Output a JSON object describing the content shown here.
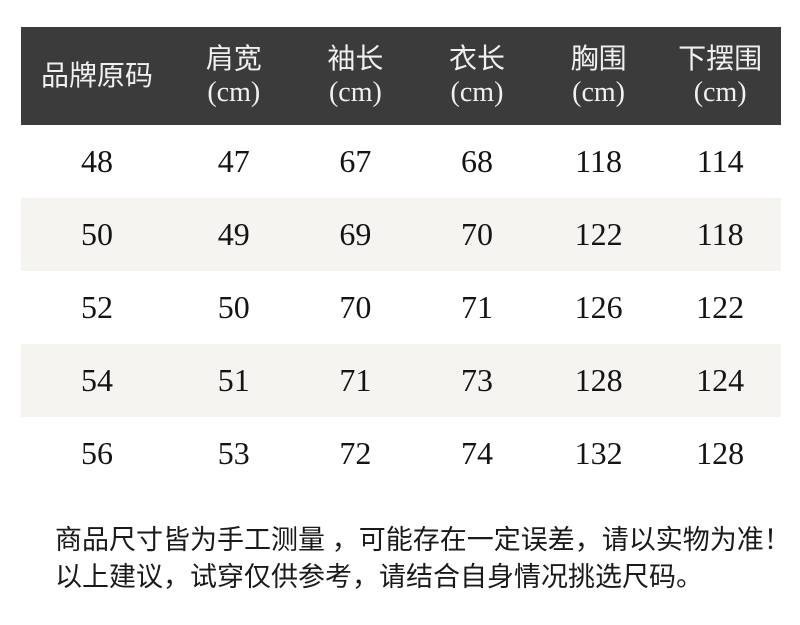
{
  "chart_data": {
    "type": "table",
    "columns": [
      {
        "label": "品牌原码",
        "unit": ""
      },
      {
        "label": "肩宽",
        "unit": "(cm)"
      },
      {
        "label": "袖长",
        "unit": "(cm)"
      },
      {
        "label": "衣长",
        "unit": "(cm)"
      },
      {
        "label": "胸围",
        "unit": "(cm)"
      },
      {
        "label": "下摆围",
        "unit": "(cm)"
      }
    ],
    "rows": [
      [
        "48",
        "47",
        "67",
        "68",
        "118",
        "114"
      ],
      [
        "50",
        "49",
        "69",
        "70",
        "122",
        "118"
      ],
      [
        "52",
        "50",
        "70",
        "71",
        "126",
        "122"
      ],
      [
        "54",
        "51",
        "71",
        "73",
        "128",
        "124"
      ],
      [
        "56",
        "53",
        "72",
        "74",
        "132",
        "128"
      ]
    ]
  },
  "notes": {
    "line1": "商品尺寸皆为手工测量 ，可能存在一定误差，请以实物为准！",
    "line2": "以上建议，试穿仅供参考，请结合自身情况挑选尺码。"
  },
  "colors": {
    "header_bg": "#3b3b3b",
    "header_text": "#f0f0f0",
    "row_alt_bg": "#f5f4f1",
    "body_text": "#141414"
  }
}
